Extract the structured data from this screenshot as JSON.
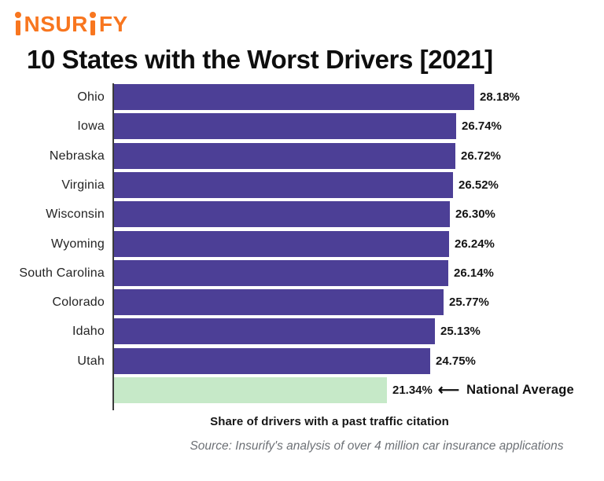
{
  "logo": {
    "text": "insurify",
    "color": "#F8761F"
  },
  "title": "10 States with the Worst Drivers [2021]",
  "chart_data": {
    "type": "bar",
    "orientation": "horizontal",
    "title": "10 States with the Worst Drivers [2021]",
    "categories": [
      "Ohio",
      "Iowa",
      "Nebraska",
      "Virginia",
      "Wisconsin",
      "Wyoming",
      "South Carolina",
      "Colorado",
      "Idaho",
      "Utah",
      "National Average"
    ],
    "values": [
      28.18,
      26.74,
      26.72,
      26.52,
      26.3,
      26.24,
      26.14,
      25.77,
      25.13,
      24.75,
      21.34
    ],
    "value_labels": [
      "28.18%",
      "26.74%",
      "26.72%",
      "26.52%",
      "26.30%",
      "26.24%",
      "26.14%",
      "25.77%",
      "25.13%",
      "24.75%",
      "21.34%"
    ],
    "xlim": [
      0,
      28.18
    ],
    "grid": false,
    "legend": "none",
    "bar_colors": {
      "state": "#4C3F96",
      "national_average": "#C6E9C8"
    },
    "annotation": {
      "arrow": "⟵",
      "label": "National Average",
      "applies_to": "National Average"
    },
    "xlabel": "Share of drivers with a past traffic citation"
  },
  "source": "Source: Insurify's analysis of over 4 million car insurance applications"
}
